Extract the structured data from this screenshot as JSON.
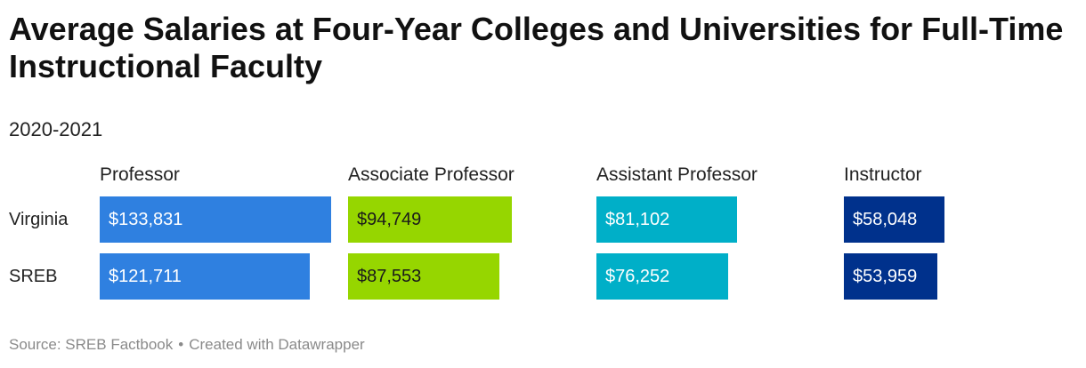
{
  "title": "Average Salaries at Four-Year Colleges and Universities for Full-Time Instructional Faculty",
  "subtitle": "2020-2021",
  "footer": {
    "source": "Source: SREB Factbook",
    "separator": "•",
    "credit": "Created with Datawrapper"
  },
  "chart_data": {
    "type": "bar",
    "orientation": "horizontal",
    "layout": "small-multiples",
    "categories": [
      "Virginia",
      "SREB"
    ],
    "panels": [
      {
        "name": "Professor",
        "color": "#2f80e0",
        "values": [
          133831,
          121711
        ],
        "labels": [
          "$133,831",
          "$121,711"
        ],
        "label_color": "#ffffff"
      },
      {
        "name": "Associate Professor",
        "color": "#96d600",
        "values": [
          94749,
          87553
        ],
        "labels": [
          "$94,749",
          "$87,553"
        ],
        "label_color": "#1a1a1a"
      },
      {
        "name": "Assistant Professor",
        "color": "#00afc8",
        "values": [
          81102,
          76252
        ],
        "labels": [
          "$81,102",
          "$76,252"
        ],
        "label_color": "#ffffff"
      },
      {
        "name": "Instructor",
        "color": "#00318c",
        "values": [
          58048,
          53959
        ],
        "labels": [
          "$58,048",
          "$53,959"
        ],
        "label_color": "#ffffff"
      }
    ],
    "xlim": [
      0,
      133831
    ],
    "grid": false,
    "legend": "none"
  }
}
